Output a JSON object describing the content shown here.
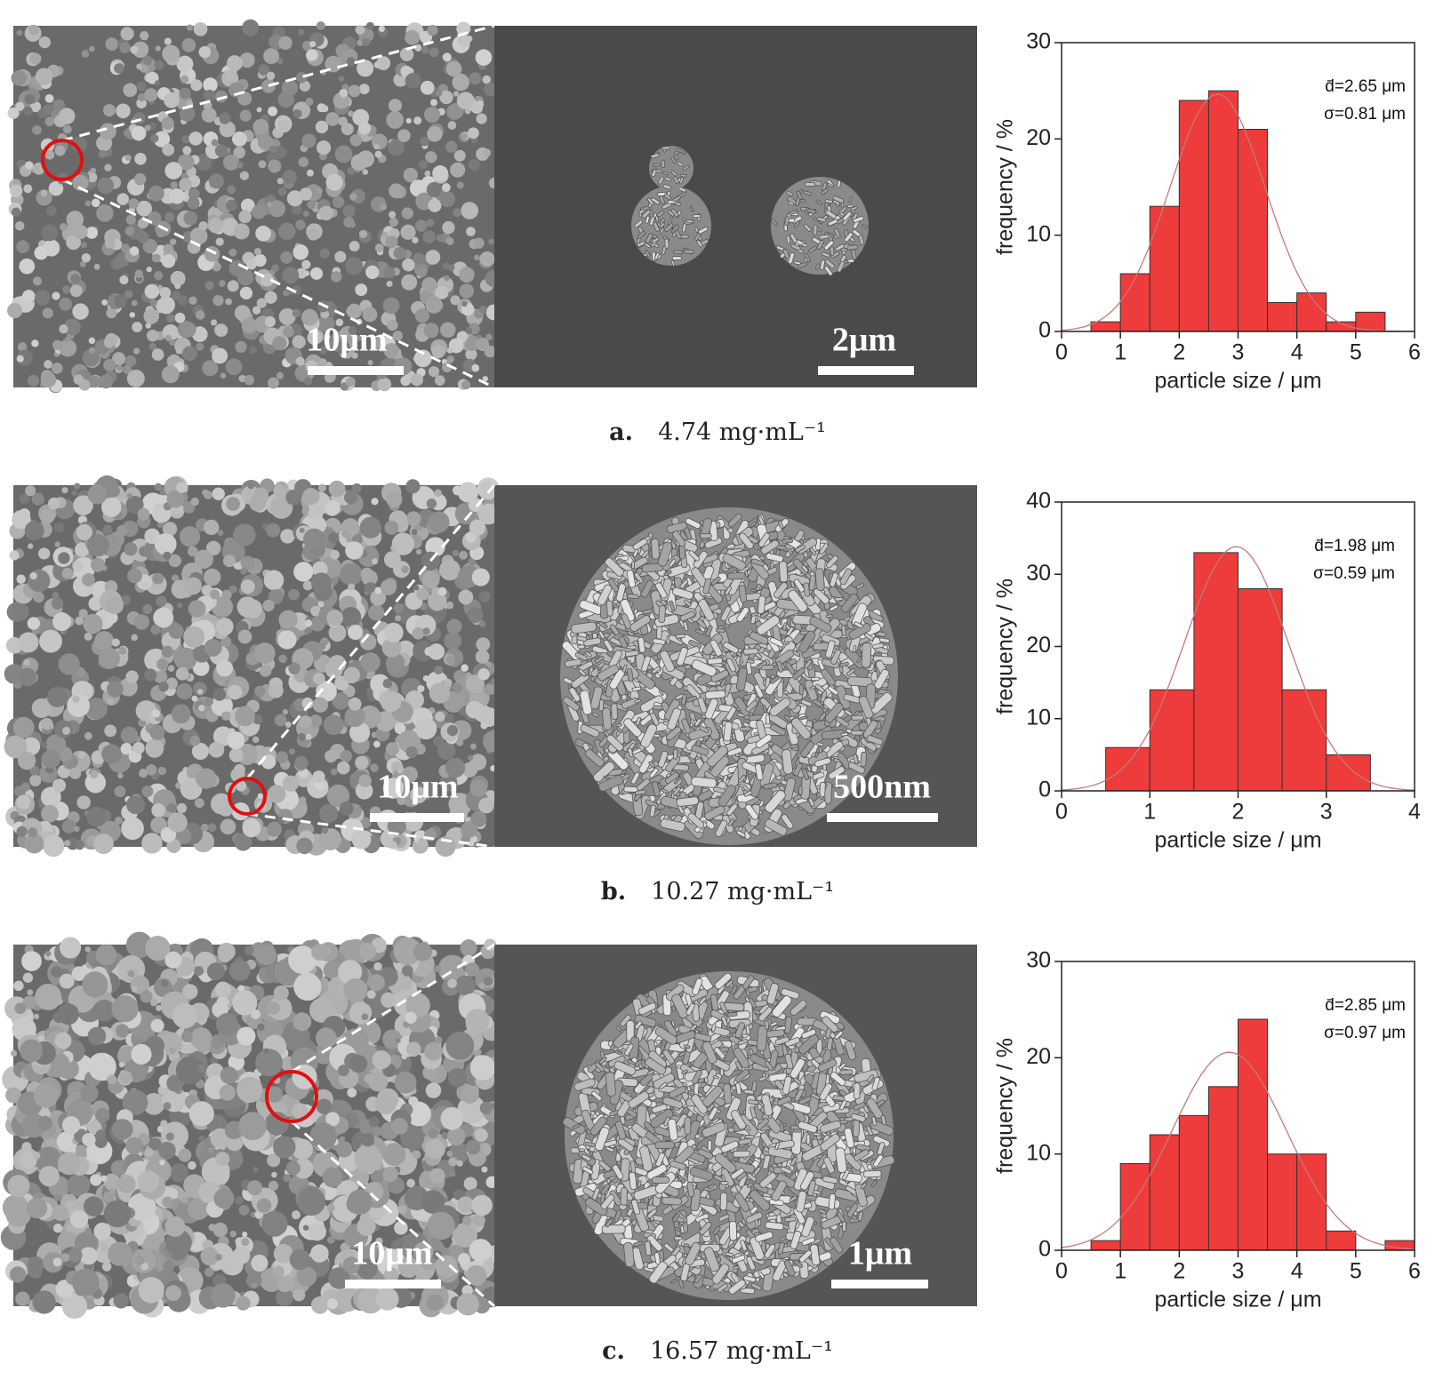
{
  "panels": [
    {
      "caption": {
        "label": "a.",
        "text": "4.74 mg·mL⁻¹"
      },
      "scale_bars": [
        "10μm",
        "2μm"
      ]
    },
    {
      "caption": {
        "label": "b.",
        "text": "10.27 mg·mL⁻¹"
      },
      "scale_bars": [
        "10μm",
        "500nm"
      ]
    },
    {
      "caption": {
        "label": "c.",
        "text": "16.57 mg·mL⁻¹"
      },
      "scale_bars": [
        "10μm",
        "1μm"
      ]
    }
  ],
  "chart_data": [
    {
      "type": "histogram",
      "xlabel": "particle size / μm",
      "ylabel": "frequency / %",
      "bins": [
        0.5,
        1,
        1.5,
        2,
        2.5,
        3,
        3.5,
        4,
        4.5,
        5,
        5.5
      ],
      "values": [
        1,
        6,
        13,
        24,
        25,
        21,
        3,
        4,
        1,
        2
      ],
      "color": "#ee3b3b",
      "xlim": [
        0,
        6
      ],
      "xticks": [
        0,
        1,
        2,
        3,
        4,
        5,
        6
      ],
      "ylim": [
        0,
        30
      ],
      "yticks": [
        0,
        10,
        20,
        30
      ],
      "fit": {
        "mean": 2.65,
        "sigma": 0.81
      },
      "annotations": [
        "d̄=2.65 μm",
        "σ=0.81 μm"
      ]
    },
    {
      "type": "histogram",
      "xlabel": "particle size / μm",
      "ylabel": "frequency / %",
      "bins": [
        0.5,
        1,
        1.5,
        2,
        2.5,
        3,
        3.5
      ],
      "values": [
        6,
        14,
        33,
        28,
        14,
        5
      ],
      "color": "#ee3b3b",
      "xlim": [
        0,
        4
      ],
      "xticks": [
        0,
        1,
        2,
        3,
        4
      ],
      "ylim": [
        0,
        40
      ],
      "yticks": [
        0,
        10,
        20,
        30,
        40
      ],
      "fit": {
        "mean": 1.98,
        "sigma": 0.59
      },
      "annotations": [
        "d̄=1.98 μm",
        "σ=0.59 μm"
      ]
    },
    {
      "type": "histogram",
      "xlabel": "particle size / μm",
      "ylabel": "frequency / %",
      "bins": [
        0.5,
        1,
        1.5,
        2,
        2.5,
        3,
        3.5,
        4,
        4.5,
        5,
        5.5,
        6
      ],
      "values": [
        1,
        9,
        12,
        14,
        17,
        24,
        10,
        10,
        2,
        0,
        1
      ],
      "color": "#ee3b3b",
      "xlim": [
        0,
        6
      ],
      "xticks": [
        0,
        1,
        2,
        3,
        4,
        5,
        6
      ],
      "ylim": [
        0,
        30
      ],
      "yticks": [
        0,
        10,
        20,
        30
      ],
      "fit": {
        "mean": 2.85,
        "sigma": 0.97
      },
      "annotations": [
        "d̄=2.85 μm",
        "σ=0.97 μm"
      ]
    }
  ]
}
